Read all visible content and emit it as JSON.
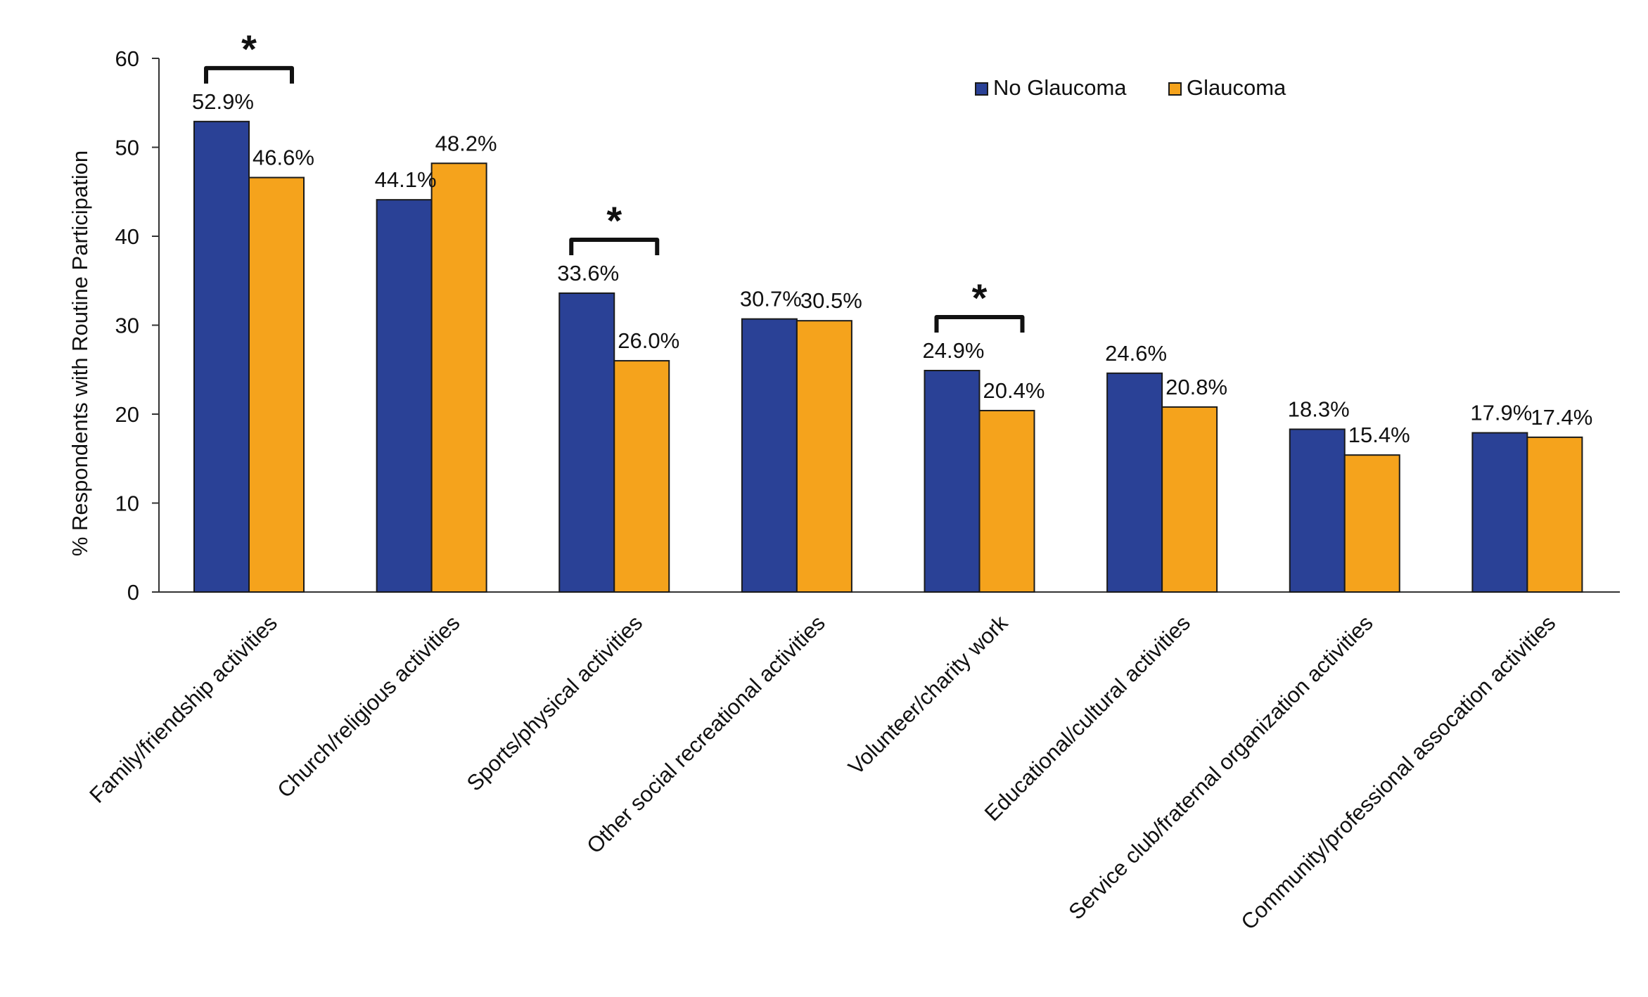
{
  "chart_data": {
    "type": "bar",
    "title": "",
    "xlabel": "",
    "ylabel": "% Respondents with Routine Participation",
    "ylim": [
      0,
      60
    ],
    "yticks": [
      0,
      10,
      20,
      30,
      40,
      50,
      60
    ],
    "categories": [
      "Family/friendship activities",
      "Church/religious activities",
      "Sports/physical activities",
      "Other social recreational activities",
      "Volunteer/charity work",
      "Educational/cultural activities",
      "Service club/fraternal organization activities",
      "Community/professional assocation activities"
    ],
    "series": [
      {
        "name": "No Glaucoma",
        "color": "#2a4196",
        "values": [
          52.9,
          44.1,
          33.6,
          30.7,
          24.9,
          24.6,
          18.3,
          17.9
        ],
        "labels": [
          "52.9%",
          "44.1%",
          "33.6%",
          "30.7%",
          "24.9%",
          "24.6%",
          "18.3%",
          "17.9%"
        ]
      },
      {
        "name": "Glaucoma",
        "color": "#f5a31c",
        "values": [
          46.6,
          48.2,
          26.0,
          30.5,
          20.4,
          20.8,
          15.4,
          17.4
        ],
        "labels": [
          "46.6%",
          "48.2%",
          "26.0%",
          "30.5%",
          "20.4%",
          "20.8%",
          "15.4%",
          "17.4%"
        ]
      }
    ],
    "significant": [
      0,
      2,
      4
    ],
    "significance_marker": "*",
    "legend_position": "top-right",
    "grid": false
  }
}
